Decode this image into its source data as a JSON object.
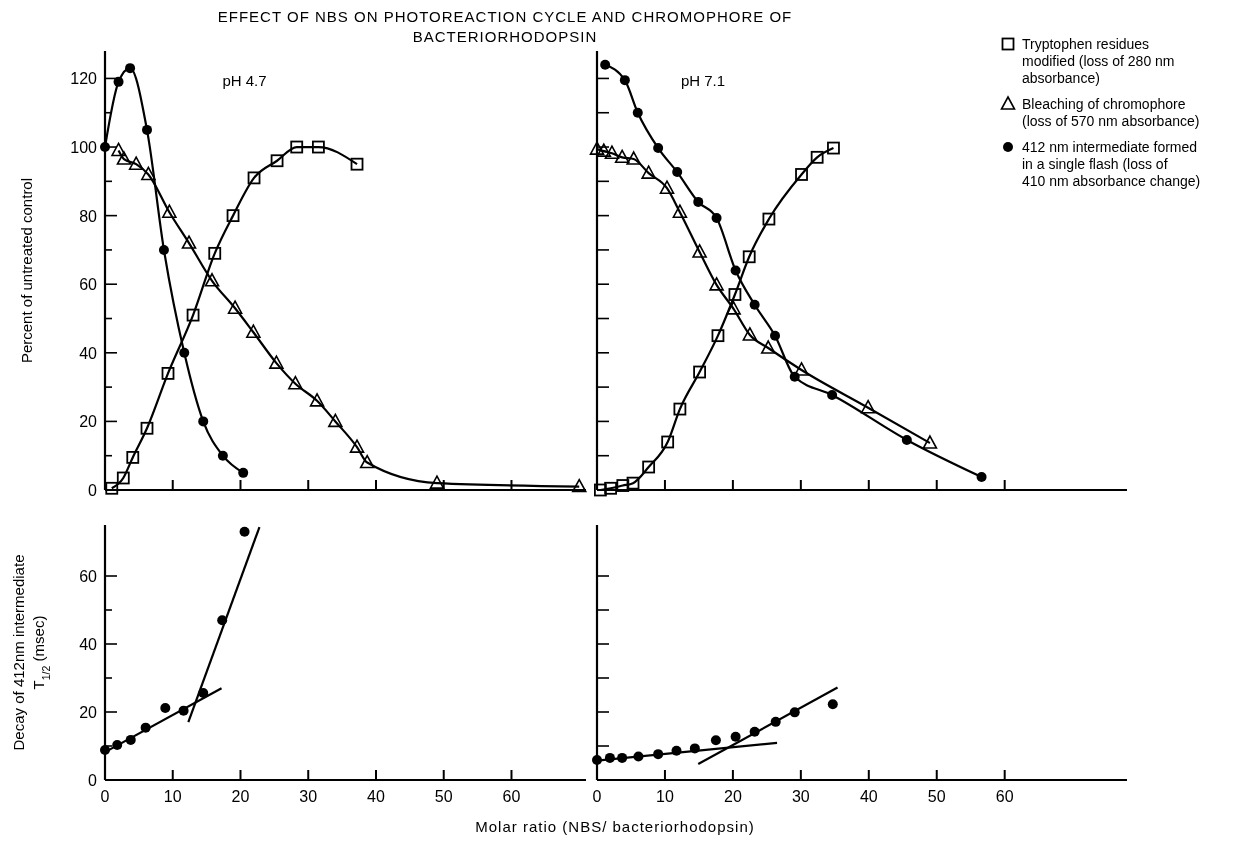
{
  "chart_data": [
    {
      "type": "line",
      "title": "EFFECT OF NBS ON PHOTOREACTION CYCLE AND CHROMOPHORE OF\nBACTERIORHODOPSIN",
      "ylabel": "Percent of untreated control",
      "annotations": [
        "pH 4.7"
      ],
      "xlim": [
        0,
        71
      ],
      "xticks": [
        0,
        10,
        20,
        30,
        40,
        50,
        60
      ],
      "ylim": [
        0,
        128
      ],
      "yticks": [
        0,
        {
          "value": 10,
          "label": null
        },
        20,
        {
          "value": 30,
          "label": null
        },
        40,
        {
          "value": 50,
          "label": null
        },
        60,
        {
          "value": 70,
          "label": null
        },
        80,
        {
          "value": 90,
          "label": null
        },
        100,
        {
          "value": 110,
          "label": null
        },
        120
      ],
      "tick_labels": "y",
      "series": [
        {
          "color": "#000000",
          "marker": "square",
          "x": [
            1,
            2.7,
            4.1,
            6.2,
            9.3,
            13,
            16.2,
            18.9,
            22,
            25.4,
            28.3,
            31.5,
            37.2
          ],
          "values": [
            0.5,
            3.5,
            9.5,
            18,
            34,
            51,
            69,
            80,
            91,
            96,
            100,
            100,
            95
          ]
        },
        {
          "color": "#000000",
          "marker": "triangle",
          "x": [
            2,
            2.8,
            4.6,
            6.4,
            9.5,
            12.4,
            15.8,
            19.2,
            21.9,
            25.3,
            28.1,
            31.3,
            34,
            37.2,
            38.7,
            49,
            70
          ],
          "values": [
            99,
            96.5,
            95,
            92,
            81,
            72,
            61,
            53,
            46,
            37,
            31,
            26,
            20,
            12.5,
            8,
            2,
            1
          ]
        },
        {
          "color": "#000000",
          "marker": "circle",
          "x": [
            0,
            2,
            3.7,
            6.2,
            8.7,
            11.7,
            14.5,
            17.4,
            20.4
          ],
          "values": [
            100,
            119,
            123,
            105,
            70,
            40,
            20,
            10,
            5
          ]
        }
      ]
    },
    {
      "type": "line",
      "annotations": [
        "pH 7.1"
      ],
      "legend": "top right",
      "xlim": [
        0,
        78
      ],
      "xticks": [
        0,
        10,
        20,
        30,
        40,
        50,
        60
      ],
      "ylim": [
        0,
        128
      ],
      "yticks": [
        0,
        10,
        20,
        30,
        40,
        50,
        60,
        70,
        80,
        90,
        100,
        110,
        120
      ],
      "tick_labels": false,
      "series": [
        {
          "name": "Tryptophen residues modified (loss of 280 nm absorbance)",
          "color": "#000000",
          "marker": "square",
          "x": [
            0.5,
            2,
            3.8,
            5.3,
            7.6,
            10.4,
            12.2,
            15.1,
            17.8,
            20.3,
            22.4,
            25.3,
            30.1,
            32.4,
            34.8
          ],
          "values": [
            0,
            0.5,
            1.3,
            2,
            6.7,
            14,
            23.6,
            34.4,
            45,
            57,
            68,
            79,
            92,
            97,
            99.7
          ]
        },
        {
          "name": "Bleaching of chromophore (loss of 570 nm absorbance)",
          "color": "#000000",
          "marker": "triangle",
          "x": [
            0,
            1,
            2.2,
            3.7,
            5.4,
            7.6,
            10.3,
            12.2,
            15.1,
            17.6,
            20.1,
            22.5,
            25.2,
            30.1,
            39.9,
            49
          ],
          "values": [
            99.4,
            98.8,
            98.2,
            97,
            96.5,
            92.4,
            88,
            81,
            69.4,
            59.8,
            52.8,
            45.2,
            41.4,
            35,
            24,
            13.7
          ]
        },
        {
          "name": "412 nm intermediate formed in a single flash (loss of 410 nm absorbance change)",
          "color": "#000000",
          "marker": "circle",
          "x": [
            1.2,
            4.1,
            6,
            9,
            11.8,
            14.9,
            17.6,
            20.4,
            23.2,
            26.2,
            29.1,
            34.6,
            45.6,
            56.6
          ],
          "values": [
            124,
            119.5,
            110,
            99.7,
            92.7,
            84,
            79.3,
            64,
            54,
            45,
            33,
            27.7,
            14.6,
            3.8
          ]
        }
      ]
    },
    {
      "type": "line",
      "xlabel": "Molar ratio (NBS/ bacteriorhodopsin)",
      "ylabel": "Decay of 412nm intermediate\nT$_{1/2}$ (msec)",
      "xlim": [
        0,
        71
      ],
      "xticks": [
        0,
        10,
        20,
        30,
        40,
        50,
        60
      ],
      "ylim": [
        0,
        75
      ],
      "yticks": [
        0,
        {
          "value": 10,
          "label": null
        },
        20,
        {
          "value": 30,
          "label": null
        },
        40,
        {
          "value": 50,
          "label": null
        },
        60
      ],
      "series": [
        {
          "color": "#000000",
          "marker": "circle",
          "type": "scatter",
          "x": [
            0,
            1.8,
            3.8,
            6,
            8.9,
            11.6,
            14.5,
            17.3,
            20.6
          ],
          "values": [
            8.8,
            10.3,
            11.8,
            15.4,
            21.2,
            20.4,
            25.6,
            47,
            73
          ]
        },
        {
          "color": "#000000",
          "marker": "none",
          "x": [
            0,
            17.2
          ],
          "values": [
            8.2,
            27
          ]
        },
        {
          "color": "#000000",
          "marker": "none",
          "x": [
            12.3,
            22.8
          ],
          "values": [
            17,
            74.4
          ]
        }
      ]
    },
    {
      "type": "line",
      "xlim": [
        0,
        78
      ],
      "xticks": [
        0,
        10,
        20,
        30,
        40,
        50,
        60
      ],
      "ylim": [
        0,
        75
      ],
      "yticks": [
        0,
        10,
        20,
        30,
        40,
        50,
        60
      ],
      "tick_labels": "x",
      "series": [
        {
          "color": "#000000",
          "marker": "circle",
          "type": "scatter",
          "x": [
            0,
            1.9,
            3.7,
            6.1,
            9,
            11.7,
            14.4,
            17.5,
            20.4,
            23.2,
            26.3,
            29.1,
            34.7
          ],
          "values": [
            5.9,
            6.5,
            6.5,
            6.9,
            7.6,
            8.6,
            9.3,
            11.7,
            12.7,
            14.2,
            17.1,
            19.9,
            22.3
          ]
        },
        {
          "color": "#000000",
          "marker": "none",
          "x": [
            0,
            26.5
          ],
          "values": [
            5.7,
            10.9
          ]
        },
        {
          "color": "#000000",
          "marker": "none",
          "x": [
            14.9,
            35.4
          ],
          "values": [
            4.7,
            27.2
          ]
        }
      ]
    }
  ]
}
